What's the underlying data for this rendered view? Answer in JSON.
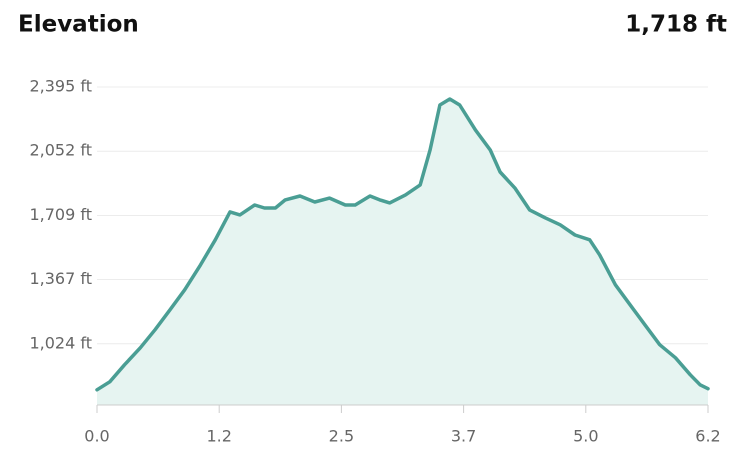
{
  "chart_data": {
    "type": "area",
    "title": "Elevation",
    "summary": "1,718 ft",
    "color": "#4a9e94",
    "fill": "#e6f4f1",
    "grid": true,
    "x": [
      0,
      0.13,
      0.28,
      0.44,
      0.59,
      0.74,
      0.89,
      1.05,
      1.2,
      1.35,
      1.45,
      1.6,
      1.7,
      1.81,
      1.91,
      2.06,
      2.21,
      2.36,
      2.52,
      2.62,
      2.77,
      2.87,
      2.97,
      3.13,
      3.28,
      3.38,
      3.48,
      3.58,
      3.68,
      3.84,
      3.99,
      4.09,
      4.24,
      4.39,
      4.55,
      4.7,
      4.85,
      5.0,
      5.1,
      5.26,
      5.41,
      5.56,
      5.71,
      5.87,
      6.02,
      6.12,
      6.2
    ],
    "values": [
      778,
      821,
      912,
      1003,
      1099,
      1205,
      1312,
      1445,
      1579,
      1728,
      1712,
      1765,
      1749,
      1749,
      1792,
      1813,
      1781,
      1802,
      1765,
      1765,
      1813,
      1792,
      1776,
      1819,
      1872,
      2059,
      2299,
      2331,
      2299,
      2166,
      2059,
      1941,
      1856,
      1739,
      1696,
      1659,
      1605,
      1579,
      1499,
      1339,
      1232,
      1125,
      1019,
      949,
      858,
      805,
      784
    ],
    "xlim": [
      0,
      6.2
    ],
    "xticks": [
      {
        "value": 0,
        "label": "0.0"
      },
      {
        "value": 1.24,
        "label": "1.2"
      },
      {
        "value": 2.48,
        "label": "2.5"
      },
      {
        "value": 3.72,
        "label": "3.7"
      },
      {
        "value": 4.96,
        "label": "5.0"
      },
      {
        "value": 6.2,
        "label": "6.2"
      }
    ],
    "ylim": [
      697,
      2395
    ],
    "yticks": [
      {
        "value": 1024,
        "label": "1,024 ft"
      },
      {
        "value": 1367,
        "label": "1,367 ft"
      },
      {
        "value": 1709,
        "label": "1,709 ft"
      },
      {
        "value": 2052,
        "label": "2,052 ft"
      },
      {
        "value": 2395,
        "label": "2,395 ft"
      }
    ]
  }
}
